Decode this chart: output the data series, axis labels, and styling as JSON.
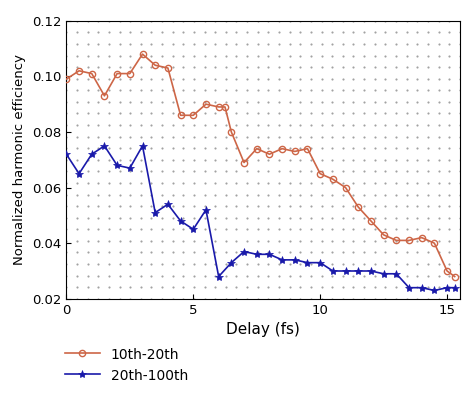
{
  "title": "",
  "xlabel": "Delay (fs)",
  "ylabel": "Normalized harmonic efficiency",
  "xlim": [
    0,
    15.5
  ],
  "ylim": [
    0.02,
    0.12
  ],
  "yticks": [
    0.02,
    0.04,
    0.06,
    0.08,
    0.1,
    0.12
  ],
  "xticks": [
    0,
    5,
    10,
    15
  ],
  "red_x": [
    0.0,
    0.5,
    1.0,
    1.5,
    2.0,
    2.5,
    3.0,
    3.5,
    4.0,
    4.5,
    5.0,
    5.5,
    6.0,
    6.25,
    6.5,
    7.0,
    7.5,
    8.0,
    8.5,
    9.0,
    9.5,
    10.0,
    10.5,
    11.0,
    11.5,
    12.0,
    12.5,
    13.0,
    13.5,
    14.0,
    14.5,
    15.0,
    15.3
  ],
  "red_y": [
    0.099,
    0.102,
    0.101,
    0.093,
    0.101,
    0.101,
    0.108,
    0.104,
    0.103,
    0.086,
    0.086,
    0.09,
    0.089,
    0.089,
    0.08,
    0.069,
    0.074,
    0.072,
    0.074,
    0.073,
    0.074,
    0.065,
    0.063,
    0.06,
    0.053,
    0.048,
    0.043,
    0.041,
    0.041,
    0.042,
    0.04,
    0.03,
    0.028
  ],
  "blue_x": [
    0.0,
    0.5,
    1.0,
    1.5,
    2.0,
    2.5,
    3.0,
    3.5,
    4.0,
    4.5,
    5.0,
    5.5,
    6.0,
    6.5,
    7.0,
    7.5,
    8.0,
    8.5,
    9.0,
    9.5,
    10.0,
    10.5,
    11.0,
    11.5,
    12.0,
    12.5,
    13.0,
    13.5,
    14.0,
    14.5,
    15.0,
    15.3
  ],
  "blue_y": [
    0.072,
    0.065,
    0.072,
    0.075,
    0.068,
    0.067,
    0.075,
    0.051,
    0.054,
    0.048,
    0.045,
    0.052,
    0.028,
    0.033,
    0.037,
    0.036,
    0.036,
    0.034,
    0.034,
    0.033,
    0.033,
    0.03,
    0.03,
    0.03,
    0.03,
    0.029,
    0.029,
    0.024,
    0.024,
    0.023,
    0.024,
    0.024
  ],
  "red_color": "#cd6647",
  "blue_color": "#1a1aaa",
  "legend_labels": [
    "10th-20th",
    "20th-100th"
  ],
  "background_color": "#ffffff",
  "dot_color": "#555555"
}
